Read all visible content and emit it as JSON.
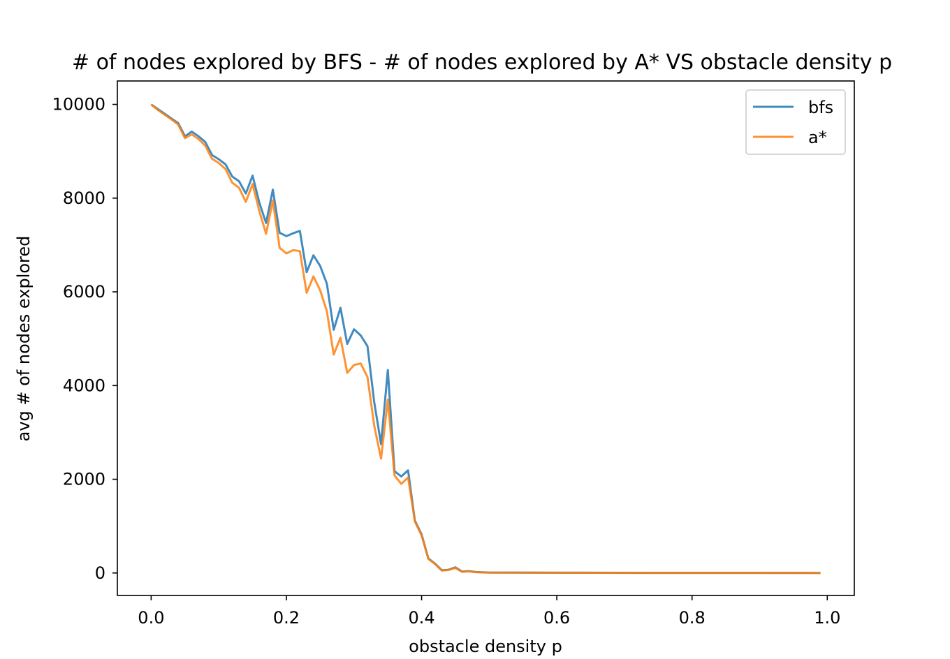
{
  "chart_data": {
    "type": "line",
    "title": "# of nodes explored by BFS - # of nodes explored by A*  VS  obstacle density p",
    "xlabel": "obstacle density p",
    "ylabel": "avg # of nodes explored",
    "xlim": [
      -0.05,
      1.04
    ],
    "ylim": [
      -480,
      10500
    ],
    "x_ticks": [
      0.0,
      0.2,
      0.4,
      0.6,
      0.8,
      1.0
    ],
    "x_tick_labels": [
      "0.0",
      "0.2",
      "0.4",
      "0.6",
      "0.8",
      "1.0"
    ],
    "y_ticks": [
      0,
      2000,
      4000,
      6000,
      8000,
      10000
    ],
    "y_tick_labels": [
      "0",
      "2000",
      "4000",
      "6000",
      "8000",
      "10000"
    ],
    "grid": false,
    "legend_position": "top-right",
    "x": [
      0.0,
      0.01,
      0.02,
      0.03,
      0.04,
      0.05,
      0.06,
      0.07,
      0.08,
      0.09,
      0.1,
      0.11,
      0.12,
      0.13,
      0.14,
      0.15,
      0.16,
      0.17,
      0.18,
      0.19,
      0.2,
      0.21,
      0.22,
      0.23,
      0.24,
      0.25,
      0.26,
      0.27,
      0.28,
      0.29,
      0.3,
      0.31,
      0.32,
      0.33,
      0.34,
      0.35,
      0.36,
      0.37,
      0.38,
      0.39,
      0.4,
      0.41,
      0.42,
      0.43,
      0.44,
      0.45,
      0.46,
      0.47,
      0.48,
      0.49,
      0.5,
      0.55,
      0.6,
      0.65,
      0.7,
      0.75,
      0.8,
      0.85,
      0.9,
      0.95,
      0.99
    ],
    "series": [
      {
        "name": "bfs",
        "color": "#1f77b4",
        "values": [
          10000,
          9900,
          9800,
          9700,
          9600,
          9320,
          9420,
          9320,
          9200,
          8920,
          8830,
          8720,
          8460,
          8360,
          8100,
          8480,
          7900,
          7470,
          8180,
          7260,
          7190,
          7250,
          7300,
          6420,
          6780,
          6550,
          6170,
          5190,
          5660,
          4890,
          5200,
          5070,
          4840,
          3640,
          2750,
          4330,
          2170,
          2060,
          2190,
          1120,
          820,
          310,
          200,
          60,
          70,
          120,
          30,
          40,
          20,
          15,
          10,
          8,
          6,
          5,
          4,
          3,
          3,
          2,
          2,
          2,
          1
        ]
      },
      {
        "name": "a*",
        "color": "#ff7f0e",
        "values": [
          10000,
          9880,
          9780,
          9680,
          9570,
          9280,
          9360,
          9260,
          9120,
          8840,
          8750,
          8620,
          8330,
          8220,
          7920,
          8300,
          7720,
          7240,
          7950,
          6940,
          6820,
          6890,
          6870,
          5980,
          6330,
          6030,
          5580,
          4660,
          5020,
          4270,
          4440,
          4470,
          4180,
          3140,
          2440,
          3700,
          2080,
          1900,
          2040,
          1100,
          800,
          300,
          190,
          50,
          65,
          110,
          25,
          35,
          18,
          12,
          9,
          7,
          5,
          4,
          3,
          3,
          2,
          2,
          2,
          1,
          1
        ]
      }
    ]
  }
}
